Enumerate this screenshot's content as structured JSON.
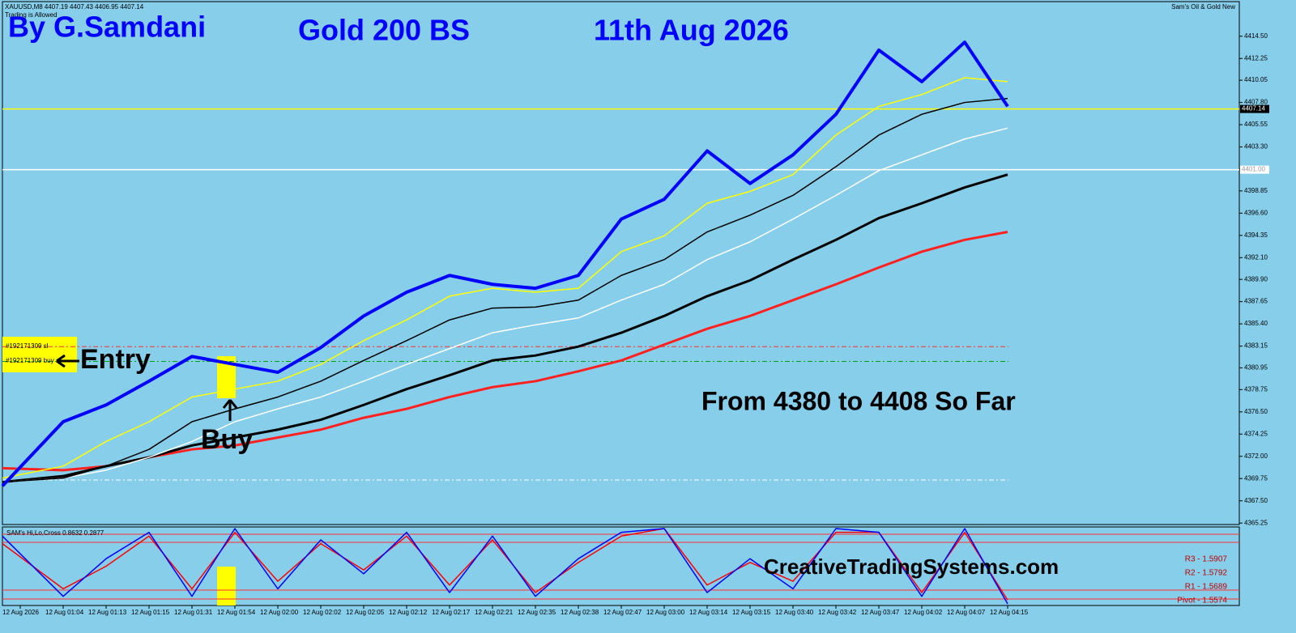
{
  "chart_data": [
    {
      "type": "line",
      "symbol_info": "XAUUSD,M8  4407.19 4407.43 4406.95 4407.14",
      "status": "Trading is Allowed",
      "indicator_name": "Sam's Oil & Gold New",
      "author": "By G.Samdani",
      "title": "Gold 200 BS",
      "subtitle": "11th Aug 2026",
      "note": "From 4380 to 4408 So Far",
      "entry_label": "Entry",
      "buy_label": "Buy",
      "order_sl": "#192171309 sl",
      "order_buy": "#192171309 buy",
      "categories": [
        "12 Aug 2026",
        "12 Aug 01:04",
        "12 Aug 01:13",
        "12 Aug 01:15",
        "12 Aug 01:31",
        "12 Aug 01:54",
        "12 Aug 02:00",
        "12 Aug 02:02",
        "12 Aug 02:05",
        "12 Aug 02:12",
        "12 Aug 02:17",
        "12 Aug 02:21",
        "12 Aug 02:35",
        "12 Aug 02:38",
        "12 Aug 02:47",
        "12 Aug 03:00",
        "12 Aug 03:14",
        "12 Aug 03:15",
        "12 Aug 03:40",
        "12 Aug 03:42",
        "12 Aug 03:47",
        "12 Aug 04:02",
        "12 Aug 04:07",
        "12 Aug 04:15"
      ],
      "series": [
        {
          "color": "#ff2020",
          "width": 3,
          "values": [
            4370.8,
            4370.6,
            4371.0,
            4371.9,
            4372.7,
            4373.1,
            4373.9,
            4374.7,
            4375.9,
            4376.8,
            4378.0,
            4379.0,
            4379.6,
            4380.6,
            4381.7,
            4383.3,
            4384.9,
            4386.2,
            4387.8,
            4389.4,
            4391.1,
            4392.7,
            4393.9,
            4394.7
          ]
        },
        {
          "color": "#000000",
          "width": 3,
          "values": [
            4369.4,
            4370.0,
            4371.0,
            4371.9,
            4373.1,
            4373.9,
            4374.7,
            4375.7,
            4377.2,
            4378.8,
            4380.2,
            4381.7,
            4382.2,
            4383.1,
            4384.5,
            4386.2,
            4388.2,
            4389.8,
            4391.9,
            4393.9,
            4396.1,
            4397.6,
            4399.2,
            4400.5
          ]
        },
        {
          "color": "#ffffff",
          "width": 1.5,
          "values": [
            4369.4,
            4369.8,
            4370.6,
            4371.9,
            4373.5,
            4375.5,
            4376.8,
            4378.0,
            4379.6,
            4381.3,
            4382.9,
            4384.5,
            4385.3,
            4386.0,
            4387.8,
            4389.4,
            4391.9,
            4393.7,
            4396.0,
            4398.4,
            4400.9,
            4402.5,
            4404.1,
            4405.2
          ]
        },
        {
          "color": "#000000",
          "width": 1.5,
          "values": [
            4369.4,
            4369.8,
            4371.0,
            4372.7,
            4375.5,
            4376.8,
            4378.0,
            4379.6,
            4381.7,
            4383.7,
            4385.8,
            4387.0,
            4387.1,
            4387.8,
            4390.3,
            4391.9,
            4394.7,
            4396.4,
            4398.4,
            4401.3,
            4404.5,
            4406.6,
            4407.8,
            4408.2
          ]
        },
        {
          "color": "#ffff00",
          "width": 1.5,
          "values": [
            4369.8,
            4371.0,
            4373.5,
            4375.5,
            4378.0,
            4378.8,
            4379.6,
            4381.3,
            4383.7,
            4385.8,
            4388.2,
            4389.0,
            4388.6,
            4389.0,
            4392.7,
            4394.3,
            4397.6,
            4398.8,
            4400.5,
            4404.5,
            4407.4,
            4408.6,
            4410.3,
            4409.9
          ]
        },
        {
          "color": "#0000ff",
          "width": 4,
          "values": [
            4369.0,
            4375.5,
            4377.2,
            4379.6,
            4382.1,
            4381.3,
            4380.5,
            4383.0,
            4386.2,
            4388.6,
            4390.3,
            4389.4,
            4389.0,
            4390.3,
            4396.0,
            4398.0,
            4402.9,
            4399.6,
            4402.5,
            4406.6,
            4413.1,
            4409.9,
            4413.9,
            4407.4
          ]
        }
      ],
      "hlines": [
        {
          "value": 4407.14,
          "label": "4407.14",
          "color": "#ffff00"
        },
        {
          "value": 4401.0,
          "label": "4401.00",
          "color": "#ffffff"
        },
        {
          "value": 4383.1,
          "color": "#ff3030"
        },
        {
          "value": 4381.6,
          "color": "#00a000"
        },
        {
          "value": 4369.6,
          "color": "#ffffff"
        }
      ],
      "ylim": [
        4365.1,
        4418.0
      ],
      "yticks": [
        {
          "value": 4365.25,
          "label": "4365.25"
        },
        {
          "value": 4367.5,
          "label": "4367.50"
        },
        {
          "value": 4369.75,
          "label": "4369.75"
        },
        {
          "value": 4372.0,
          "label": "4372.00"
        },
        {
          "value": 4374.25,
          "label": "4374.25"
        },
        {
          "value": 4376.5,
          "label": "4376.50"
        },
        {
          "value": 4378.75,
          "label": "4378.75"
        },
        {
          "value": 4380.95,
          "label": "4380.95"
        },
        {
          "value": 4383.15,
          "label": "4383.15"
        },
        {
          "value": 4385.4,
          "label": "4385.40"
        },
        {
          "value": 4387.65,
          "label": "4387.65"
        },
        {
          "value": 4389.9,
          "label": "4389.90"
        },
        {
          "value": 4392.1,
          "label": "4392.10"
        },
        {
          "value": 4394.35,
          "label": "4394.35"
        },
        {
          "value": 4396.6,
          "label": "4396.60"
        },
        {
          "value": 4398.85,
          "label": "4398.85"
        },
        {
          "value": 4401.05,
          "label": "4401.05"
        },
        {
          "value": 4403.3,
          "label": "4403.30"
        },
        {
          "value": 4405.55,
          "label": "4405.55"
        },
        {
          "value": 4407.8,
          "label": "4407.80"
        },
        {
          "value": 4410.05,
          "label": "4410.05"
        },
        {
          "value": 4412.25,
          "label": "4412.25"
        },
        {
          "value": 4414.5,
          "label": "4414.50"
        }
      ]
    },
    {
      "type": "line",
      "indicator_name": "SAM's Hi,Lo,Cross 0.8632 0.2877",
      "website": "CreativeTradingSystems.com",
      "pivots": [
        "R3 - 1.5907",
        "R2 - 1.5792",
        "R1 - 1.5689",
        "Pivot - 1.5574"
      ],
      "series": [
        {
          "color": "#ff0000",
          "width": 1.5,
          "values": [
            80,
            20,
            50,
            90,
            20,
            95,
            30,
            80,
            45,
            90,
            25,
            85,
            15,
            55,
            90,
            100,
            25,
            55,
            30,
            95,
            95,
            15,
            95,
            5
          ]
        },
        {
          "color": "#0000ff",
          "width": 1.5,
          "values": [
            90,
            10,
            60,
            95,
            10,
            100,
            20,
            85,
            40,
            95,
            15,
            90,
            10,
            60,
            95,
            100,
            15,
            60,
            20,
            100,
            95,
            10,
            100,
            0
          ]
        }
      ],
      "ylim": [
        0,
        100
      ]
    }
  ]
}
